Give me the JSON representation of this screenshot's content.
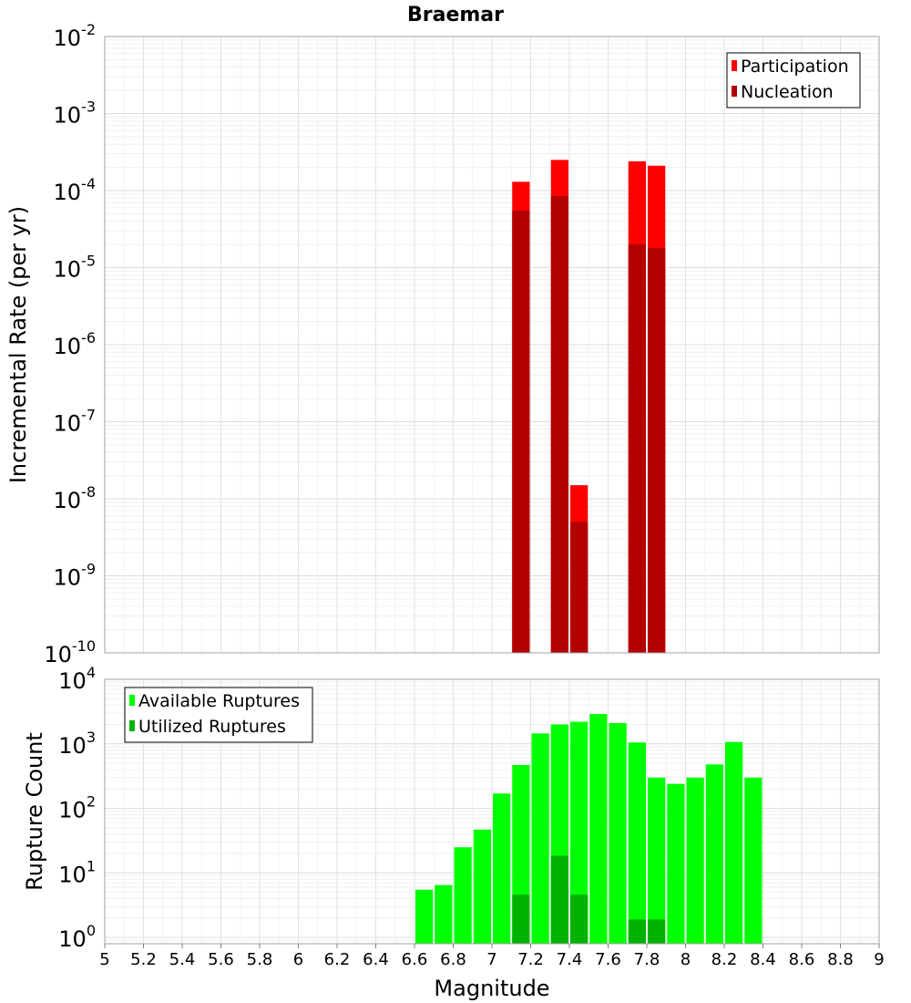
{
  "chart_data": [
    {
      "type": "bar",
      "title": "Braemar",
      "xlabel": "",
      "ylabel": "Incremental Rate (per yr)",
      "y_scale": "log",
      "ylim": [
        1e-10,
        0.01
      ],
      "xlim": [
        5,
        9
      ],
      "grid": true,
      "legend_position": "top-right",
      "bin_width": 0.1,
      "y_tick_exponents": [
        "-10",
        "-9",
        "-8",
        "-7",
        "-6",
        "-5",
        "-4",
        "-3",
        "-2"
      ],
      "series": [
        {
          "name": "Participation",
          "color": "#ff0000",
          "x": [
            7.15,
            7.35,
            7.45,
            7.75,
            7.85
          ],
          "values": [
            0.00013,
            0.00025,
            1.5e-08,
            0.00024,
            0.00021
          ]
        },
        {
          "name": "Nucleation",
          "color": "#b20000",
          "x": [
            7.15,
            7.35,
            7.45,
            7.75,
            7.85
          ],
          "values": [
            5.5e-05,
            8.5e-05,
            5e-09,
            2e-05,
            1.8e-05
          ]
        }
      ]
    },
    {
      "type": "bar",
      "xlabel": "Magnitude",
      "ylabel": "Rupture Count",
      "y_scale": "log",
      "ylim": [
        0.8,
        10000.0
      ],
      "xlim": [
        5,
        9
      ],
      "grid": true,
      "legend_position": "top-left",
      "bin_width": 0.1,
      "y_tick_exponents": [
        "0",
        "1",
        "2",
        "3",
        "4"
      ],
      "x_ticks": [
        "5",
        "5.2",
        "5.4",
        "5.6",
        "5.8",
        "6",
        "6.2",
        "6.4",
        "6.6",
        "6.8",
        "7",
        "7.2",
        "7.4",
        "7.6",
        "7.8",
        "8",
        "8.2",
        "8.4",
        "8.6",
        "8.8",
        "9"
      ],
      "series": [
        {
          "name": "Available Ruptures",
          "color": "#00ff00",
          "x": [
            6.65,
            6.75,
            6.85,
            6.95,
            7.05,
            7.15,
            7.25,
            7.35,
            7.45,
            7.55,
            7.65,
            7.75,
            7.85,
            7.95,
            8.05,
            8.15,
            8.25,
            8.35
          ],
          "values": [
            5.5,
            6.5,
            25,
            47,
            170,
            470,
            1450,
            2000,
            2200,
            2900,
            2100,
            1050,
            300,
            240,
            300,
            480,
            1070,
            300
          ]
        },
        {
          "name": "Utilized Ruptures",
          "color": "#00b200",
          "x": [
            7.15,
            7.35,
            7.45,
            7.75,
            7.85
          ],
          "values": [
            4.6,
            18.5,
            4.6,
            1.9,
            1.9
          ]
        }
      ]
    }
  ]
}
